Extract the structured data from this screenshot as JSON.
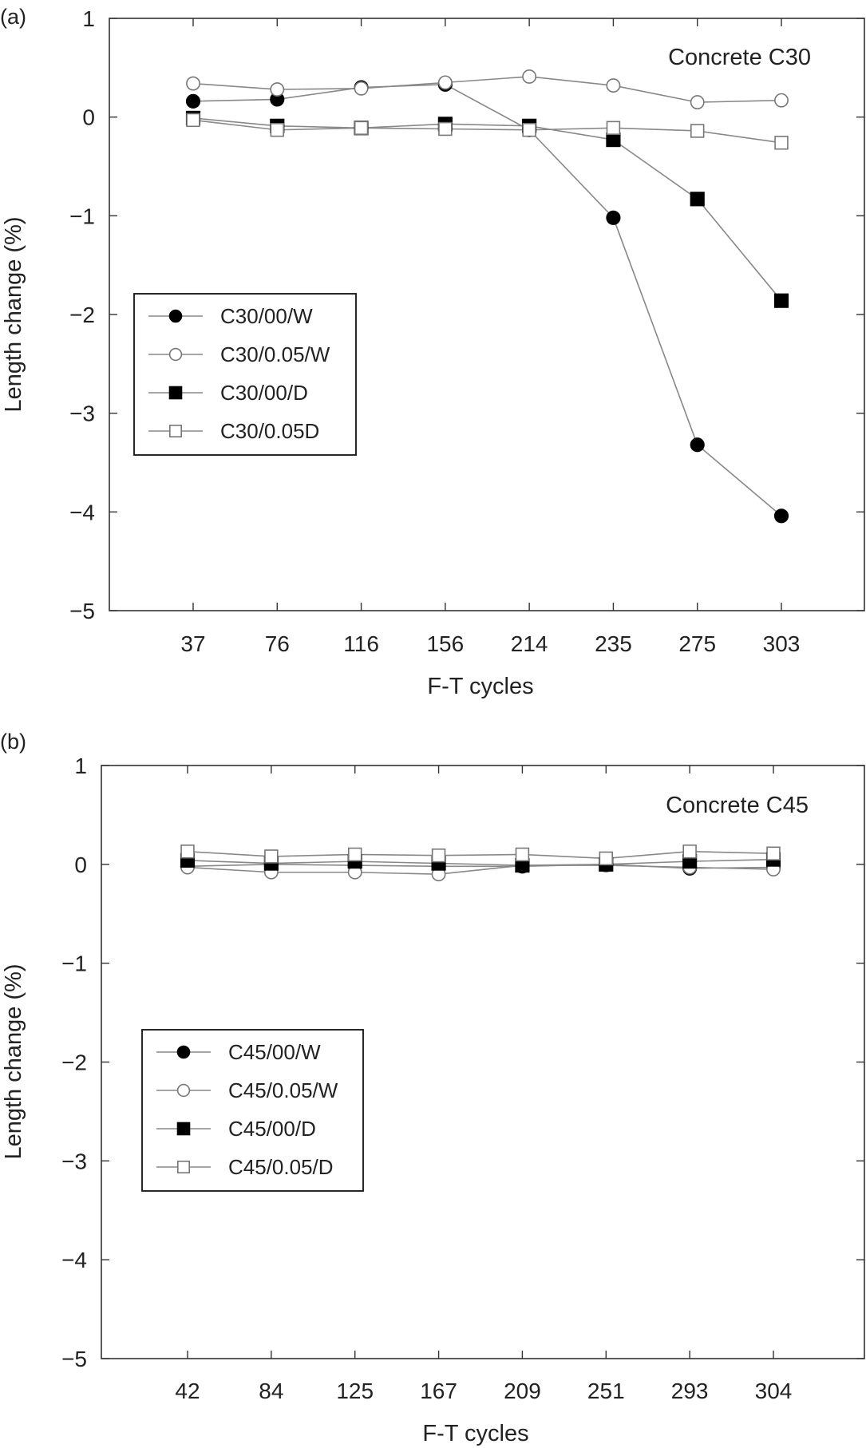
{
  "chart_data": [
    {
      "type": "line",
      "panel_label": "(a)",
      "annotation": "Concrete C30",
      "xlabel": "F-T cycles",
      "ylabel": "Length change (%)",
      "ylim": [
        -5,
        1
      ],
      "yticks": [
        "1",
        "0",
        "−1",
        "−2",
        "−3",
        "−4",
        "−5"
      ],
      "categories": [
        "37",
        "76",
        "116",
        "156",
        "214",
        "235",
        "275",
        "303"
      ],
      "grid": false,
      "legend_position": "center-left",
      "series": [
        {
          "name": "C30/00/W",
          "marker": "filled-circle",
          "values": [
            0.16,
            0.18,
            0.3,
            0.33,
            -0.13,
            -1.02,
            -3.32,
            -4.04
          ]
        },
        {
          "name": "C30/0.05/W",
          "marker": "open-circle",
          "values": [
            0.34,
            0.28,
            0.29,
            0.35,
            0.41,
            0.32,
            0.15,
            0.17
          ]
        },
        {
          "name": "C30/00/D",
          "marker": "filled-square",
          "values": [
            -0.01,
            -0.09,
            -0.11,
            -0.07,
            -0.09,
            -0.23,
            -0.83,
            -1.86
          ]
        },
        {
          "name": "C30/0.05D",
          "marker": "open-square",
          "values": [
            -0.03,
            -0.13,
            -0.11,
            -0.12,
            -0.13,
            -0.11,
            -0.14,
            -0.26
          ]
        }
      ]
    },
    {
      "type": "line",
      "panel_label": "(b)",
      "annotation": "Concrete C45",
      "xlabel": "F-T cycles",
      "ylabel": "Length change (%)",
      "ylim": [
        -5,
        1
      ],
      "yticks": [
        "1",
        "0",
        "−1",
        "−2",
        "−3",
        "−4",
        "−5"
      ],
      "categories": [
        "42",
        "84",
        "125",
        "167",
        "209",
        "251",
        "293",
        "304"
      ],
      "grid": false,
      "legend_position": "center-left",
      "series": [
        {
          "name": "C45/00/W",
          "marker": "filled-circle",
          "values": [
            -0.02,
            0.0,
            -0.01,
            -0.02,
            -0.02,
            0.0,
            -0.04,
            -0.03
          ]
        },
        {
          "name": "C45/0.05/W",
          "marker": "open-circle",
          "values": [
            -0.03,
            -0.08,
            -0.08,
            -0.1,
            -0.01,
            -0.01,
            -0.03,
            -0.05
          ]
        },
        {
          "name": "C45/00/D",
          "marker": "filled-square",
          "values": [
            0.04,
            0.01,
            0.03,
            0.01,
            -0.01,
            0.0,
            0.03,
            0.05
          ]
        },
        {
          "name": "C45/0.05/D",
          "marker": "open-square",
          "values": [
            0.13,
            0.08,
            0.1,
            0.09,
            0.1,
            0.06,
            0.13,
            0.11
          ]
        }
      ]
    }
  ]
}
